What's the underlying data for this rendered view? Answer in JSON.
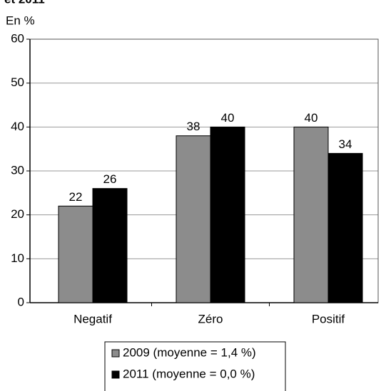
{
  "chart_data": {
    "type": "bar",
    "title": "et 2011",
    "y_label": "En %",
    "categories": [
      "Negatif",
      "Zéro",
      "Positif"
    ],
    "series": [
      {
        "name": "2009 (moyenne = 1,4 %)",
        "color": "#8c8c8c",
        "values": [
          22,
          38,
          40
        ]
      },
      {
        "name": "2011 (moyenne = 0,0 %)",
        "color": "#000000",
        "values": [
          26,
          40,
          34
        ]
      }
    ],
    "ylim": [
      0,
      60
    ],
    "yticks": [
      0,
      10,
      20,
      30,
      40,
      50,
      60
    ],
    "grid": true,
    "legend": "bottom"
  }
}
